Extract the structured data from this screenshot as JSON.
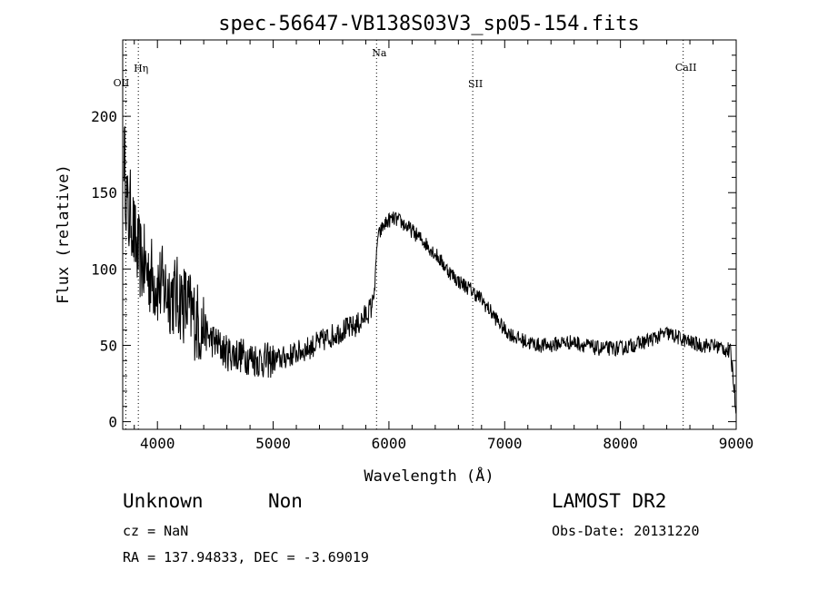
{
  "chart_data": {
    "type": "line",
    "title": "spec-56647-VB138S03V3_sp05-154.fits",
    "xlabel": "Wavelength (Å)",
    "ylabel": "Flux (relative)",
    "xlim": [
      3700,
      9000
    ],
    "ylim": [
      -5,
      250
    ],
    "x_ticks": [
      4000,
      5000,
      6000,
      7000,
      8000,
      9000
    ],
    "y_ticks": [
      0,
      50,
      100,
      150,
      200
    ],
    "grid": false,
    "series": [
      {
        "color": "#000000",
        "x": [
          3710,
          3730,
          3750,
          3770,
          3800,
          3830,
          3860,
          3900,
          3950,
          4000,
          4050,
          4100,
          4150,
          4200,
          4250,
          4300,
          4350,
          4400,
          4450,
          4500,
          4600,
          4700,
          4800,
          4900,
          5000,
          5100,
          5200,
          5300,
          5400,
          5500,
          5600,
          5700,
          5750,
          5800,
          5850,
          5880,
          5900,
          5950,
          6000,
          6050,
          6100,
          6150,
          6200,
          6300,
          6400,
          6500,
          6600,
          6700,
          6800,
          6900,
          7000,
          7100,
          7200,
          7300,
          7400,
          7500,
          7600,
          7700,
          7800,
          7900,
          8000,
          8100,
          8200,
          8300,
          8400,
          8500,
          8600,
          8700,
          8800,
          8900,
          8950,
          8975,
          9000
        ],
        "y": [
          180,
          150,
          130,
          140,
          120,
          110,
          105,
          100,
          95,
          90,
          88,
          85,
          82,
          80,
          76,
          70,
          65,
          60,
          55,
          52,
          45,
          44,
          42,
          40,
          40,
          42,
          45,
          48,
          52,
          56,
          60,
          62,
          65,
          70,
          75,
          90,
          120,
          128,
          132,
          133,
          131,
          128,
          125,
          118,
          110,
          100,
          92,
          87,
          80,
          70,
          60,
          55,
          52,
          50,
          50,
          52,
          52,
          50,
          48,
          48,
          48,
          50,
          52,
          55,
          58,
          55,
          52,
          50,
          50,
          48,
          45,
          30,
          5
        ]
      }
    ],
    "lines": [
      {
        "label": "OII",
        "x": 3727
      },
      {
        "label": "Hη",
        "x": 3835
      },
      {
        "label": "Na",
        "x": 5893
      },
      {
        "label": "SII",
        "x": 6724
      },
      {
        "label": "CaII",
        "x": 8542
      }
    ]
  },
  "info": {
    "class": "Unknown",
    "subclass": "Non",
    "survey": "LAMOST DR2",
    "cz": "cz = NaN",
    "obs_date": "Obs-Date: 20131220",
    "radec": "RA = 137.94833, DEC =  -3.69019"
  }
}
